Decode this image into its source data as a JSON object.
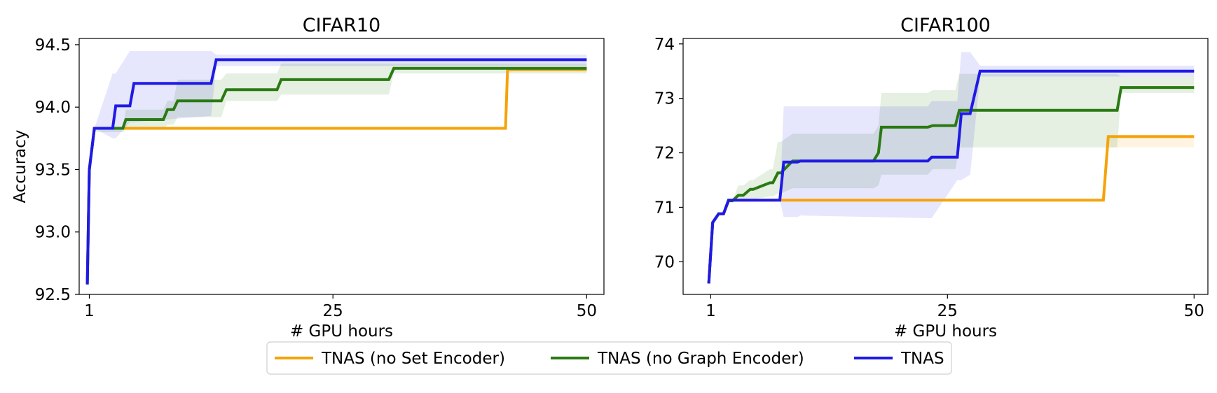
{
  "colors": {
    "TNAS (no Set Encoder)": "#f5a30a",
    "TNAS (no Graph Encoder)": "#2a7a12",
    "TNAS": "#1f1ae6"
  },
  "legend": {
    "items": [
      "TNAS (no Set Encoder)",
      "TNAS (no Graph Encoder)",
      "TNAS"
    ],
    "placement": "bottom-center"
  },
  "chart_data": [
    {
      "type": "line",
      "title": "CIFAR10",
      "xlabel": "# GPU hours",
      "ylabel": "Accuracy",
      "xlim": [
        0,
        51.7
      ],
      "ylim": [
        92.5,
        94.55
      ],
      "xticks": [
        1,
        25,
        50
      ],
      "xtick_labels": [
        "1",
        "25",
        "50"
      ],
      "yticks": [
        92.5,
        93.0,
        93.5,
        94.0,
        94.5
      ],
      "ytick_labels": [
        "92.5",
        "93.0",
        "93.5",
        "94.0",
        "94.5"
      ],
      "grid": false,
      "series": [
        {
          "name": "TNAS (no Set Encoder)",
          "x": [
            0.8,
            1.0,
            1.5,
            42.0,
            42.2,
            50
          ],
          "y": [
            92.58,
            93.5,
            93.83,
            93.83,
            94.3,
            94.3
          ]
        },
        {
          "name": "TNAS (no Graph Encoder)",
          "x": [
            0.8,
            1.0,
            1.5,
            4.3,
            4.6,
            8.3,
            8.7,
            9.3,
            9.7,
            14.0,
            14.5,
            19.5,
            19.9,
            30.5,
            31.0,
            50
          ],
          "y": [
            92.58,
            93.5,
            93.83,
            93.83,
            93.9,
            93.9,
            93.98,
            93.98,
            94.05,
            94.05,
            94.14,
            94.14,
            94.22,
            94.22,
            94.31,
            94.31
          ],
          "band_upper": [
            92.58,
            93.5,
            93.83,
            93.83,
            93.98,
            93.98,
            94.05,
            94.05,
            94.22,
            94.22,
            94.27,
            94.27,
            94.35,
            94.35,
            94.35,
            94.35
          ],
          "band_lower": [
            92.58,
            93.5,
            93.8,
            93.8,
            93.82,
            93.82,
            93.86,
            93.86,
            93.92,
            93.92,
            94.05,
            94.05,
            94.1,
            94.1,
            94.27,
            94.27
          ]
        },
        {
          "name": "TNAS",
          "x": [
            0.8,
            1.0,
            1.5,
            3.3,
            3.6,
            5.0,
            5.4,
            13.0,
            13.5,
            50
          ],
          "y": [
            92.58,
            93.5,
            93.83,
            93.83,
            94.01,
            94.01,
            94.19,
            94.19,
            94.38,
            94.38
          ],
          "band_upper": [
            92.58,
            93.5,
            93.83,
            94.27,
            94.27,
            94.45,
            94.45,
            94.45,
            94.42,
            94.42
          ],
          "band_lower": [
            92.58,
            93.5,
            93.83,
            93.75,
            93.75,
            93.88,
            93.88,
            93.93,
            94.33,
            94.33
          ]
        }
      ]
    },
    {
      "type": "line",
      "title": "CIFAR100",
      "xlabel": "# GPU hours",
      "ylabel": "",
      "xlim": [
        -1.8,
        51.4
      ],
      "ylim": [
        69.4,
        74.1
      ],
      "xticks": [
        1,
        25,
        50
      ],
      "xtick_labels": [
        "1",
        "25",
        "50"
      ],
      "yticks": [
        70,
        71,
        72,
        73,
        74
      ],
      "ytick_labels": [
        "70",
        "71",
        "72",
        "73",
        "74"
      ],
      "grid": false,
      "series": [
        {
          "name": "TNAS (no Set Encoder)",
          "x": [
            0.8,
            1.2,
            1.8,
            2.3,
            2.8,
            3.2,
            8.2,
            40.8,
            41.3,
            50
          ],
          "y": [
            69.6,
            70.72,
            70.88,
            70.88,
            71.13,
            71.13,
            71.13,
            71.13,
            72.3,
            72.3
          ],
          "band_upper": [
            69.6,
            70.72,
            70.88,
            70.88,
            71.13,
            71.13,
            71.13,
            71.13,
            72.3,
            72.3
          ],
          "band_lower": [
            69.6,
            70.72,
            70.88,
            70.88,
            71.13,
            71.13,
            71.13,
            71.13,
            72.1,
            72.1
          ]
        },
        {
          "name": "TNAS (no Graph Encoder)",
          "x": [
            0.8,
            1.2,
            1.8,
            2.3,
            2.8,
            3.2,
            3.8,
            4.3,
            5.0,
            5.3,
            7.0,
            7.3,
            7.8,
            8.1,
            9.3,
            9.6,
            17.5,
            18.0,
            18.3,
            23.0,
            23.5,
            25.8,
            26.2,
            42.2,
            42.6,
            50
          ],
          "y": [
            69.6,
            70.72,
            70.88,
            70.88,
            71.12,
            71.12,
            71.22,
            71.22,
            71.33,
            71.33,
            71.45,
            71.45,
            71.63,
            71.63,
            71.85,
            71.85,
            71.85,
            72.0,
            72.47,
            72.47,
            72.5,
            72.5,
            72.78,
            72.78,
            73.2,
            73.2
          ],
          "band_upper": [
            69.6,
            70.72,
            70.88,
            70.88,
            71.12,
            71.12,
            71.4,
            71.4,
            71.5,
            71.5,
            71.7,
            71.7,
            72.2,
            72.2,
            72.35,
            72.35,
            72.35,
            72.5,
            73.1,
            73.1,
            73.15,
            73.15,
            73.45,
            73.45,
            73.4,
            73.4
          ],
          "band_lower": [
            69.6,
            70.72,
            70.88,
            70.88,
            71.12,
            71.12,
            71.1,
            71.1,
            71.15,
            71.15,
            71.2,
            71.2,
            71.25,
            71.25,
            71.35,
            71.35,
            71.35,
            71.4,
            71.6,
            71.6,
            71.7,
            71.7,
            72.1,
            72.1,
            73.1,
            73.1
          ]
        },
        {
          "name": "TNAS",
          "x": [
            0.8,
            1.2,
            1.8,
            2.3,
            2.8,
            3.2,
            8.0,
            8.4,
            9.8,
            10.1,
            23.0,
            23.4,
            26.0,
            26.4,
            27.3,
            28.3,
            50
          ],
          "y": [
            69.6,
            70.72,
            70.88,
            70.88,
            71.13,
            71.13,
            71.13,
            71.83,
            71.83,
            71.85,
            71.85,
            71.92,
            71.92,
            72.72,
            72.72,
            73.5,
            73.5
          ],
          "band_upper": [
            69.6,
            70.72,
            70.88,
            70.88,
            71.13,
            71.13,
            71.13,
            72.85,
            72.85,
            72.85,
            72.85,
            72.95,
            72.95,
            73.85,
            73.85,
            73.6,
            73.6
          ],
          "band_lower": [
            69.6,
            70.72,
            70.88,
            70.88,
            71.13,
            71.13,
            71.13,
            70.82,
            70.82,
            70.85,
            70.8,
            70.8,
            71.5,
            71.5,
            71.6,
            73.4,
            73.4
          ]
        }
      ]
    }
  ]
}
